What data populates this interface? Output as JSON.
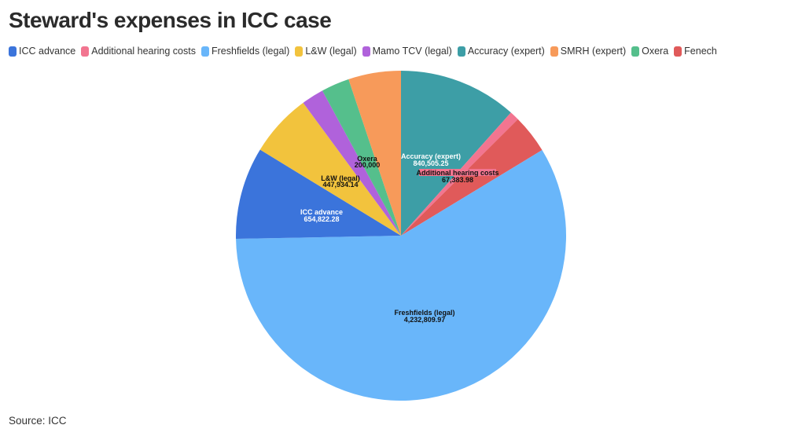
{
  "title": "Steward's expenses in ICC case",
  "source": "Source: ICC",
  "legend": [
    {
      "label": "ICC advance",
      "color": "#3b74db"
    },
    {
      "label": "Additional hearing costs",
      "color": "#f27590"
    },
    {
      "label": "Freshfields (legal)",
      "color": "#69b6fa"
    },
    {
      "label": "L&W (legal)",
      "color": "#f2c33d"
    },
    {
      "label": "Mamo TCV (legal)",
      "color": "#b062db"
    },
    {
      "label": "Accuracy (expert)",
      "color": "#3d9ea6"
    },
    {
      "label": "SMRH (expert)",
      "color": "#f79a5a"
    },
    {
      "label": "Oxera",
      "color": "#55bf8c"
    },
    {
      "label": "Fenech",
      "color": "#e05a5a"
    }
  ],
  "labels": {
    "accuracy": {
      "name": "Accuracy (expert)",
      "value": "840,505.25"
    },
    "ahc": {
      "name": "Additional hearing costs",
      "value": "67,383.98"
    },
    "freshfields": {
      "name": "Freshfields (legal)",
      "value": "4,232,809.97"
    },
    "icc": {
      "name": "ICC advance",
      "value": "654,822.28"
    },
    "lw": {
      "name": "L&W (legal)",
      "value": "447,934.14"
    },
    "oxera": {
      "name": "Oxera",
      "value": "200,000"
    }
  },
  "chart_data": {
    "type": "pie",
    "title": "Steward's expenses in ICC case",
    "source": "ICC",
    "start_angle_deg": 0,
    "direction": "clockwise",
    "legend_position": "top",
    "slices": [
      {
        "label": "Accuracy (expert)",
        "value": 840505.25,
        "color": "#3d9ea6",
        "labeled": true
      },
      {
        "label": "Additional hearing costs",
        "value": 67383.98,
        "color": "#f27590",
        "labeled": true
      },
      {
        "label": "Fenech",
        "value": 275000,
        "color": "#e05a5a",
        "labeled": false,
        "estimated": true
      },
      {
        "label": "Freshfields (legal)",
        "value": 4232809.97,
        "color": "#69b6fa",
        "labeled": true
      },
      {
        "label": "ICC advance",
        "value": 654822.28,
        "color": "#3b74db",
        "labeled": true
      },
      {
        "label": "L&W (legal)",
        "value": 447934.14,
        "color": "#f2c33d",
        "labeled": true
      },
      {
        "label": "Mamo TCV (legal)",
        "value": 159000,
        "color": "#b062db",
        "labeled": false,
        "estimated": true
      },
      {
        "label": "Oxera",
        "value": 200000,
        "color": "#55bf8c",
        "labeled": true
      },
      {
        "label": "SMRH (expert)",
        "value": 373000,
        "color": "#f79a5a",
        "labeled": false,
        "estimated": true
      }
    ]
  }
}
